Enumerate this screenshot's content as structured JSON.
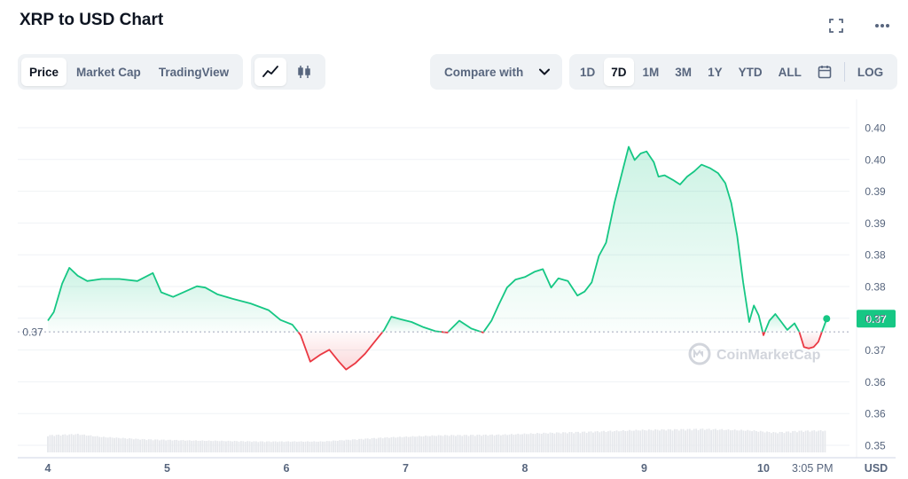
{
  "header": {
    "title": "XRP to USD Chart"
  },
  "icons": {
    "fullscreen": "fullscreen-icon",
    "more": "more-horizontal-icon",
    "calendar": "calendar-icon",
    "line": "line-chart-icon",
    "candle": "candlestick-icon",
    "chevron": "chevron-down-icon"
  },
  "toolbar": {
    "metric_tabs": [
      {
        "label": "Price",
        "active": true
      },
      {
        "label": "Market Cap",
        "active": false
      },
      {
        "label": "TradingView",
        "active": false
      }
    ],
    "compare_label": "Compare with",
    "ranges": [
      {
        "label": "1D",
        "active": false
      },
      {
        "label": "7D",
        "active": true
      },
      {
        "label": "1M",
        "active": false
      },
      {
        "label": "3M",
        "active": false
      },
      {
        "label": "1Y",
        "active": false
      },
      {
        "label": "YTD",
        "active": false
      },
      {
        "label": "ALL",
        "active": false
      }
    ],
    "log_label": "LOG"
  },
  "colors": {
    "up": "#16c784",
    "down": "#ea3943",
    "grid": "#eff2f5",
    "text": "#58667e",
    "volume": "#e6e8ec"
  },
  "chart_data": {
    "type": "area",
    "x_tick_labels": [
      "4",
      "5",
      "6",
      "7",
      "8",
      "9",
      "10",
      "3:05 PM"
    ],
    "y_tick_labels": [
      "0.40",
      "0.40",
      "0.39",
      "0.39",
      "0.38",
      "0.38",
      "0.37",
      "0.37",
      "0.36",
      "0.36",
      "0.35"
    ],
    "ylim": [
      0.352,
      0.403
    ],
    "baseline": 0.3705,
    "baseline_label": "0.37",
    "current_price_label": "0.37",
    "currency_label": "USD",
    "watermark": "CoinMarketCap",
    "price": [
      [
        0,
        0.3722
      ],
      [
        0.05,
        0.3735
      ],
      [
        0.12,
        0.3778
      ],
      [
        0.18,
        0.3802
      ],
      [
        0.25,
        0.379
      ],
      [
        0.33,
        0.3782
      ],
      [
        0.45,
        0.3785
      ],
      [
        0.6,
        0.3785
      ],
      [
        0.75,
        0.3782
      ],
      [
        0.88,
        0.3794
      ],
      [
        0.95,
        0.3765
      ],
      [
        1.05,
        0.3758
      ],
      [
        1.15,
        0.3766
      ],
      [
        1.25,
        0.3774
      ],
      [
        1.32,
        0.3772
      ],
      [
        1.42,
        0.3762
      ],
      [
        1.55,
        0.3755
      ],
      [
        1.7,
        0.3748
      ],
      [
        1.85,
        0.3738
      ],
      [
        1.95,
        0.3723
      ],
      [
        2.05,
        0.3716
      ],
      [
        2.12,
        0.37
      ],
      [
        2.2,
        0.366
      ],
      [
        2.28,
        0.367
      ],
      [
        2.36,
        0.3678
      ],
      [
        2.44,
        0.366
      ],
      [
        2.5,
        0.3648
      ],
      [
        2.58,
        0.3658
      ],
      [
        2.66,
        0.3672
      ],
      [
        2.74,
        0.369
      ],
      [
        2.82,
        0.3708
      ],
      [
        2.88,
        0.3728
      ],
      [
        2.96,
        0.3724
      ],
      [
        3.05,
        0.372
      ],
      [
        3.15,
        0.3712
      ],
      [
        3.25,
        0.3706
      ],
      [
        3.35,
        0.3704
      ],
      [
        3.45,
        0.3722
      ],
      [
        3.55,
        0.371
      ],
      [
        3.65,
        0.3704
      ],
      [
        3.72,
        0.3722
      ],
      [
        3.78,
        0.3746
      ],
      [
        3.85,
        0.3772
      ],
      [
        3.92,
        0.3784
      ],
      [
        4.0,
        0.3788
      ],
      [
        4.08,
        0.3796
      ],
      [
        4.15,
        0.38
      ],
      [
        4.22,
        0.3772
      ],
      [
        4.28,
        0.3786
      ],
      [
        4.36,
        0.3782
      ],
      [
        4.44,
        0.376
      ],
      [
        4.5,
        0.3766
      ],
      [
        4.56,
        0.378
      ],
      [
        4.62,
        0.382
      ],
      [
        4.68,
        0.384
      ],
      [
        4.75,
        0.39
      ],
      [
        4.82,
        0.395
      ],
      [
        4.87,
        0.3985
      ],
      [
        4.92,
        0.3965
      ],
      [
        4.97,
        0.3975
      ],
      [
        5.02,
        0.3978
      ],
      [
        5.08,
        0.3962
      ],
      [
        5.12,
        0.394
      ],
      [
        5.17,
        0.3942
      ],
      [
        5.24,
        0.3935
      ],
      [
        5.3,
        0.3928
      ],
      [
        5.36,
        0.394
      ],
      [
        5.42,
        0.3948
      ],
      [
        5.48,
        0.3958
      ],
      [
        5.55,
        0.3953
      ],
      [
        5.62,
        0.3945
      ],
      [
        5.68,
        0.393
      ],
      [
        5.73,
        0.39
      ],
      [
        5.78,
        0.385
      ],
      [
        5.83,
        0.378
      ],
      [
        5.88,
        0.372
      ],
      [
        5.92,
        0.3745
      ],
      [
        5.96,
        0.373
      ],
      [
        6.0,
        0.37
      ],
      [
        6.05,
        0.3722
      ],
      [
        6.1,
        0.3732
      ],
      [
        6.15,
        0.372
      ],
      [
        6.2,
        0.3708
      ],
      [
        6.26,
        0.3718
      ],
      [
        6.3,
        0.3705
      ],
      [
        6.34,
        0.3682
      ],
      [
        6.38,
        0.368
      ],
      [
        6.42,
        0.3682
      ],
      [
        6.46,
        0.369
      ],
      [
        6.5,
        0.371
      ],
      [
        6.53,
        0.3725
      ]
    ],
    "volume_relative": [
      [
        0,
        0.86
      ],
      [
        0.25,
        0.92
      ],
      [
        0.45,
        0.78
      ],
      [
        0.8,
        0.66
      ],
      [
        1.2,
        0.6
      ],
      [
        1.8,
        0.55
      ],
      [
        2.3,
        0.55
      ],
      [
        2.8,
        0.74
      ],
      [
        3.3,
        0.86
      ],
      [
        3.8,
        0.89
      ],
      [
        4.2,
        0.98
      ],
      [
        4.6,
        1.05
      ],
      [
        5.0,
        1.13
      ],
      [
        5.5,
        1.18
      ],
      [
        5.9,
        1.1
      ],
      [
        6.1,
        1.0
      ],
      [
        6.3,
        1.08
      ],
      [
        6.53,
        1.1
      ]
    ]
  }
}
